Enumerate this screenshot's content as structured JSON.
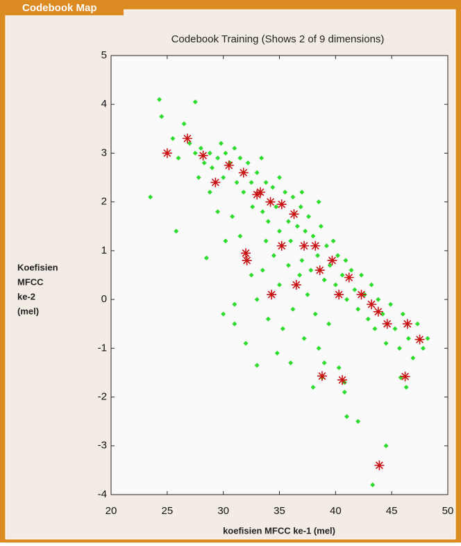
{
  "window": {
    "title": "Codebook Map"
  },
  "chart_data": {
    "type": "scatter",
    "title": "Codebook Training (Shows 2 of 9 dimensions)",
    "x_label": "koefisien MFCC ke-1 (mel)",
    "y_label": [
      "Koefisien",
      "MFCC",
      "ke-2",
      "(mel)"
    ],
    "xlim": [
      20,
      50
    ],
    "ylim": [
      -4,
      5
    ],
    "xticks": [
      20,
      25,
      30,
      35,
      40,
      45,
      50
    ],
    "yticks": [
      -4,
      -3,
      -2,
      -1,
      0,
      1,
      2,
      3,
      4,
      5
    ],
    "grid": false,
    "series": [
      {
        "marker": "dot",
        "color": "#2edc2e",
        "x": [
          24.3,
          24.5,
          27.5,
          23.5,
          25.8,
          28.5,
          30.0,
          31.0,
          33.0,
          38.0,
          41.0,
          42.0,
          44.5,
          43.3,
          40.8,
          39.0,
          27.0,
          27.5,
          28.0,
          28.3,
          28.8,
          29.0,
          29.5,
          29.8,
          30.2,
          30.0,
          30.6,
          31.0,
          31.2,
          31.5,
          31.8,
          32.2,
          32.5,
          32.6,
          33.0,
          33.4,
          33.5,
          33.8,
          34.0,
          34.4,
          34.7,
          35.0,
          35.0,
          35.5,
          35.8,
          36.0,
          36.2,
          36.6,
          36.9,
          37.0,
          37.3,
          37.6,
          37.8,
          38.0,
          38.4,
          38.7,
          39.0,
          39.2,
          39.5,
          39.8,
          40.0,
          40.2,
          40.6,
          40.9,
          41.0,
          41.4,
          41.7,
          42.0,
          42.3,
          42.6,
          42.9,
          43.2,
          43.5,
          43.8,
          44.2,
          44.5,
          44.9,
          45.3,
          45.7,
          46.0,
          46.5,
          46.9,
          47.3,
          47.8,
          48.2,
          46.3,
          45.8,
          31.5,
          32.5,
          33.0,
          33.5,
          34.0,
          34.5,
          35.0,
          35.3,
          35.8,
          36.2,
          36.8,
          37.2,
          37.5,
          38.2,
          38.5,
          39.4,
          38.8,
          40.3,
          40.8,
          30.8,
          30.2,
          29.5,
          28.8,
          27.8,
          26.5,
          25.5,
          26.0,
          31.0,
          32.0,
          34.8,
          36.0,
          33.8,
          37.0,
          38.5
        ],
        "y": [
          4.1,
          3.75,
          4.05,
          2.1,
          1.4,
          0.85,
          -0.3,
          -0.5,
          -1.35,
          -1.8,
          -2.4,
          -2.5,
          -3.0,
          -3.8,
          -1.9,
          -1.3,
          3.2,
          3.0,
          3.1,
          2.8,
          3.0,
          2.7,
          2.9,
          3.2,
          3.0,
          2.5,
          2.8,
          3.1,
          2.4,
          2.9,
          2.2,
          2.8,
          2.4,
          1.9,
          2.6,
          2.9,
          1.8,
          2.4,
          1.6,
          2.3,
          1.9,
          2.5,
          1.4,
          2.2,
          1.6,
          1.2,
          2.1,
          1.5,
          1.9,
          0.8,
          1.4,
          1.7,
          0.6,
          1.3,
          0.9,
          1.5,
          0.4,
          1.1,
          0.7,
          1.2,
          0.3,
          0.9,
          0.5,
          0.8,
          0.0,
          0.6,
          0.2,
          -0.2,
          0.5,
          0.1,
          -0.4,
          0.3,
          -0.6,
          0.0,
          -0.3,
          -0.9,
          -0.1,
          -0.6,
          -1.0,
          -0.3,
          -0.8,
          -1.2,
          -0.5,
          -1.0,
          -0.8,
          -1.8,
          -1.6,
          1.3,
          0.5,
          0.0,
          0.6,
          -0.4,
          0.9,
          0.3,
          -0.6,
          0.7,
          -0.2,
          0.5,
          -0.8,
          0.1,
          -0.3,
          -1.0,
          -0.5,
          -1.6,
          -1.4,
          -1.7,
          1.7,
          1.2,
          1.8,
          2.2,
          2.5,
          3.6,
          3.3,
          2.9,
          -0.1,
          -0.9,
          -1.1,
          -1.3,
          1.2,
          2.2,
          2.0
        ]
      },
      {
        "marker": "star",
        "color": "#c81010",
        "x": [
          25.0,
          26.8,
          28.2,
          29.3,
          30.5,
          31.8,
          33.0,
          33.3,
          34.2,
          35.2,
          36.3,
          32.0,
          32.1,
          35.2,
          37.2,
          38.2,
          38.6,
          39.7,
          36.5,
          34.3,
          40.3,
          41.2,
          42.3,
          43.2,
          43.8,
          44.6,
          46.4,
          47.5,
          38.8,
          40.6,
          46.2,
          43.9
        ],
        "y": [
          3.0,
          3.3,
          2.95,
          2.4,
          2.75,
          2.6,
          2.15,
          2.2,
          2.0,
          1.95,
          1.75,
          0.95,
          0.8,
          1.1,
          1.1,
          1.1,
          0.6,
          0.8,
          0.3,
          0.1,
          0.1,
          0.45,
          0.1,
          -0.1,
          -0.25,
          -0.5,
          -0.5,
          -0.82,
          -1.57,
          -1.65,
          -1.58,
          -3.4
        ]
      }
    ]
  }
}
